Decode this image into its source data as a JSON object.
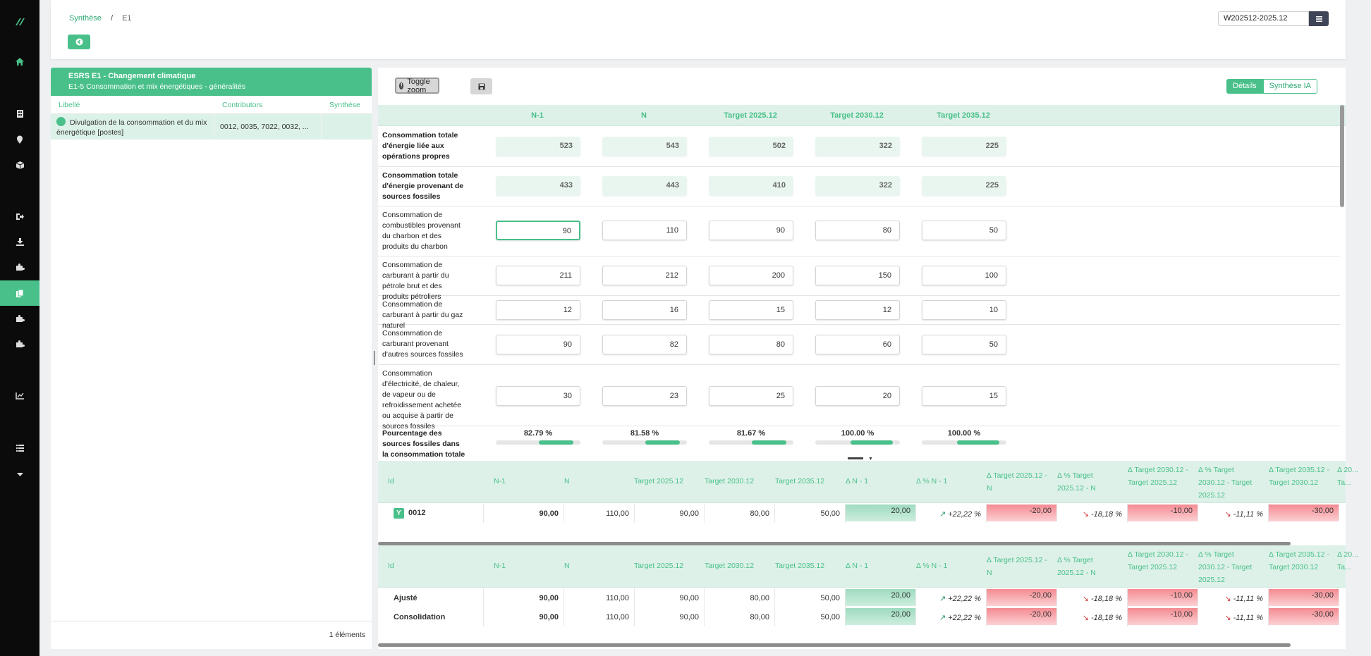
{
  "breadcrumb": {
    "home": "Synthèse",
    "current": "E1"
  },
  "period": {
    "value": "W202512-2025.12"
  },
  "left_panel": {
    "title": "ESRS E1 - Changement climatique",
    "subtitle": "E1-5 Consommation et mix énergétiques - généralités",
    "columns": [
      "Libellé",
      "Contributors",
      "Synthèse"
    ],
    "rows": [
      {
        "label": "Divulgation de la consommation et du mix énergétique [postes]",
        "contributors": "0012, 0035, 7022, 0032, ...",
        "synthese": ""
      }
    ],
    "footer": "1 éléments"
  },
  "toolbar": {
    "toggle_zoom": "Toggle zoom",
    "details": "Détails",
    "synthese_ia": "Synthèse IA"
  },
  "grid": {
    "columns": [
      "N-1",
      "N",
      "Target 2025.12",
      "Target 2030.12",
      "Target 2035.12"
    ],
    "rows": [
      {
        "label": "Consommation totale d'énergie liée aux opérations propres",
        "bold": true,
        "editable": false,
        "values": [
          "523",
          "543",
          "502",
          "322",
          "225"
        ]
      },
      {
        "label": "Consommation totale d'énergie provenant de sources fossiles",
        "bold": true,
        "editable": false,
        "values": [
          "433",
          "443",
          "410",
          "322",
          "225"
        ]
      },
      {
        "label": "Consommation de combustibles provenant du charbon et des produits du charbon",
        "bold": false,
        "editable": true,
        "values": [
          "90",
          "110",
          "90",
          "80",
          "50"
        ]
      },
      {
        "label": "Consommation de carburant à partir du pétrole brut et des produits pétroliers",
        "bold": false,
        "editable": true,
        "values": [
          "211",
          "212",
          "200",
          "150",
          "100"
        ]
      },
      {
        "label": "Consommation de carburant à partir du gaz naturel",
        "bold": false,
        "editable": true,
        "values": [
          "12",
          "16",
          "15",
          "12",
          "10"
        ]
      },
      {
        "label": "Consommation de carburant provenant d'autres sources fossiles",
        "bold": false,
        "editable": true,
        "values": [
          "90",
          "82",
          "80",
          "60",
          "50"
        ]
      },
      {
        "label": "Consommation d'électricité, de chaleur, de vapeur ou de refroidissement achetée ou acquise à partir de sources fossiles",
        "bold": false,
        "editable": true,
        "values": [
          "30",
          "23",
          "25",
          "20",
          "15"
        ]
      }
    ],
    "percent_row": {
      "label": "Pourcentage des sources fossiles dans la consommation totale",
      "values": [
        "82.79 %",
        "81.58 %",
        "81.67 %",
        "100.00 %",
        "100.00 %"
      ],
      "fractions": [
        0.8279,
        0.8158,
        0.8167,
        1.0,
        1.0
      ]
    }
  },
  "detail_headers": [
    "Id",
    "N-1",
    "N",
    "Target 2025.12",
    "Target 2030.12",
    "Target 2035.12",
    "Δ N - 1",
    "Δ % N - 1",
    "Δ Target 2025.12 - N",
    "Δ % Target 2025.12 - N",
    "Δ Target 2030.12 - Target 2025.12",
    "Δ % Target 2030.12 - Target 2025.12",
    "Δ Target 2035.12 - Target 2030.12",
    "Δ 20... Ta..."
  ],
  "detail_table_1": [
    {
      "badge": "Y",
      "id": "0012",
      "cells": [
        "90,00",
        "110,00",
        "90,00",
        "80,00",
        "50,00",
        "20,00",
        "+22,22 %",
        "-20,00",
        "-18,18 %",
        "-10,00",
        "-11,11 %",
        "-30,00"
      ]
    }
  ],
  "detail_table_2": [
    {
      "id": "Ajusté",
      "cells": [
        "90,00",
        "110,00",
        "90,00",
        "80,00",
        "50,00",
        "20,00",
        "+22,22 %",
        "-20,00",
        "-18,18 %",
        "-10,00",
        "-11,11 %",
        "-30,00"
      ]
    },
    {
      "id": "Consolidation",
      "cells": [
        "90,00",
        "110,00",
        "90,00",
        "80,00",
        "50,00",
        "20,00",
        "+22,22 %",
        "-20,00",
        "-18,18 %",
        "-10,00",
        "-11,11 %",
        "-30,00"
      ]
    }
  ],
  "icons": {
    "rail": [
      "logo-icon",
      "home-icon",
      "building-icon",
      "map-pin-icon",
      "box-icon",
      "sign-out-icon",
      "download-icon",
      "puzzle-icon",
      "copy-icon",
      "puzzle-icon",
      "puzzle-icon",
      "chart-icon",
      "list-icon",
      "caret-down-icon"
    ],
    "accent": "#49c08a",
    "positive": "#9edbbf",
    "negative": "#f48b92"
  }
}
